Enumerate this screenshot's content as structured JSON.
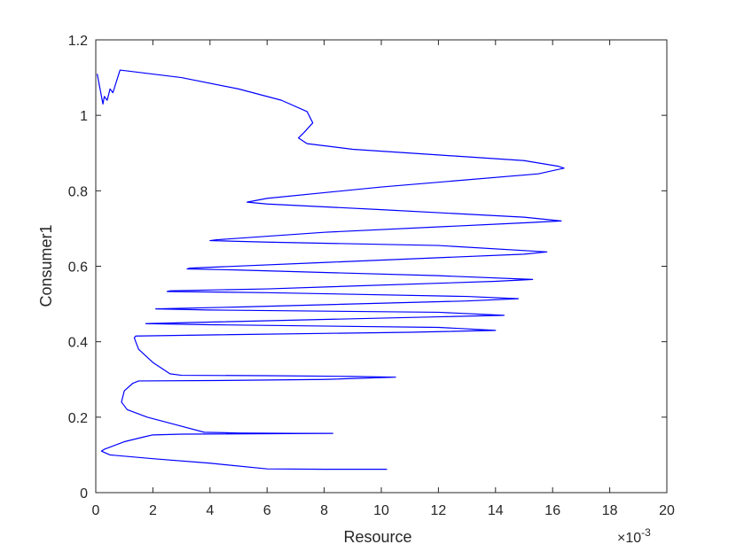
{
  "chart_data": {
    "type": "line",
    "xlabel": "Resource",
    "ylabel": "Consumer1",
    "x_multiplier": {
      "base": "×10",
      "exponent": "-3"
    },
    "xlim": [
      0,
      20
    ],
    "xticks": [
      0,
      2,
      4,
      6,
      8,
      10,
      12,
      14,
      16,
      18,
      20
    ],
    "ylim": [
      0,
      1.2
    ],
    "yticks": [
      0,
      0.2,
      0.4,
      0.6,
      0.8,
      1,
      1.2
    ],
    "grid": false,
    "x": [
      0.05,
      0.25,
      0.3,
      0.4,
      0.5,
      0.6,
      0.85,
      3,
      5,
      6.5,
      7.4,
      7.6,
      7.3,
      7.1,
      7.4,
      9,
      12,
      15,
      16.2,
      16.4,
      15.5,
      10,
      6,
      5.3,
      6,
      10,
      15,
      16.3,
      15,
      8,
      4.2,
      4,
      6,
      12,
      15.8,
      15,
      8,
      3.3,
      3.2,
      5,
      12,
      15.3,
      14,
      6,
      2.6,
      2.5,
      6,
      13,
      14.8,
      13,
      5,
      2.1,
      4,
      12,
      14.3,
      12,
      4,
      1.75,
      4,
      12,
      14,
      11,
      4,
      1.4,
      1.35,
      1.5,
      2,
      2.6,
      3,
      6,
      9,
      10.5,
      8,
      4,
      1.5,
      1.3,
      1,
      0.9,
      1.1,
      1.8,
      2.8,
      3.8,
      5,
      7,
      8.3,
      6,
      3,
      2,
      1.7,
      1,
      0.3,
      0.2,
      0.5,
      2,
      4,
      6,
      8,
      10.2
    ],
    "series": [
      {
        "color": "#0000ff",
        "values": [
          1.11,
          1.03,
          1.05,
          1.04,
          1.07,
          1.06,
          1.12,
          1.1,
          1.07,
          1.04,
          1.01,
          0.98,
          0.955,
          0.94,
          0.925,
          0.91,
          0.895,
          0.88,
          0.865,
          0.86,
          0.845,
          0.81,
          0.78,
          0.77,
          0.765,
          0.75,
          0.73,
          0.72,
          0.715,
          0.69,
          0.67,
          0.668,
          0.664,
          0.655,
          0.638,
          0.632,
          0.61,
          0.595,
          0.593,
          0.59,
          0.575,
          0.565,
          0.56,
          0.54,
          0.535,
          0.533,
          0.53,
          0.52,
          0.514,
          0.508,
          0.492,
          0.487,
          0.484,
          0.478,
          0.47,
          0.466,
          0.452,
          0.448,
          0.445,
          0.438,
          0.43,
          0.425,
          0.418,
          0.415,
          0.41,
          0.38,
          0.345,
          0.315,
          0.311,
          0.31,
          0.308,
          0.306,
          0.3,
          0.297,
          0.296,
          0.29,
          0.27,
          0.24,
          0.22,
          0.2,
          0.18,
          0.16,
          0.158,
          0.157,
          0.157,
          0.156,
          0.155,
          0.153,
          0.148,
          0.135,
          0.115,
          0.11,
          0.1,
          0.09,
          0.078,
          0.063,
          0.062,
          0.062
        ]
      }
    ]
  }
}
